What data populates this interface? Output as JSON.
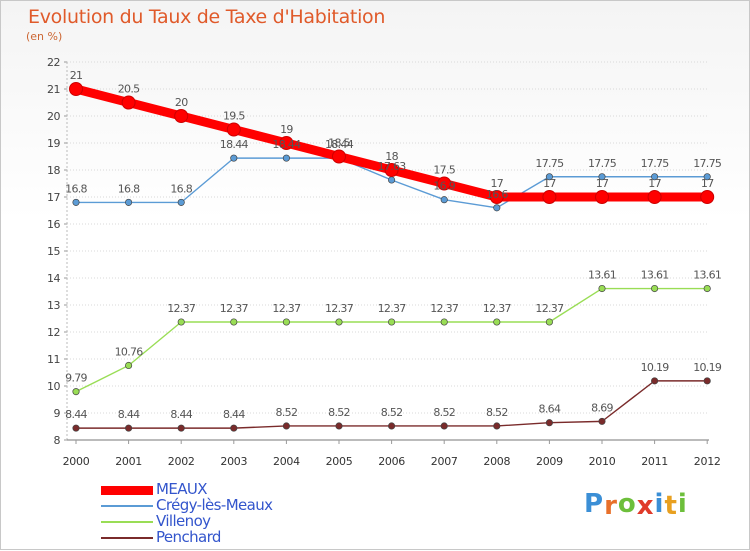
{
  "title": "Evolution du Taux de Taxe d'Habitation",
  "subtitle": "(en %)",
  "logo": {
    "text": "Proxiti",
    "letter_colors": [
      "#3b8fd6",
      "#e8702a",
      "#6dbf3b",
      "#e03a2a",
      "#3b8fd6",
      "#e8a020",
      "#6dbf3b"
    ]
  },
  "chart_data": {
    "type": "line",
    "title": "Evolution du Taux de Taxe d'Habitation",
    "ylabel": "(en %)",
    "xlabel": "",
    "ylim": [
      8,
      22
    ],
    "yticks": [
      8,
      9,
      10,
      11,
      12,
      13,
      14,
      15,
      16,
      17,
      18,
      19,
      20,
      21,
      22
    ],
    "x": [
      "2000",
      "2001",
      "2002",
      "2003",
      "2004",
      "2005",
      "2006",
      "2007",
      "2008",
      "2009",
      "2010",
      "2011",
      "2012"
    ],
    "grid": "horizontal dotted",
    "legend_position": "bottom-left",
    "series": [
      {
        "name": "MEAUX",
        "color": "#ff0000",
        "values": [
          21,
          20.5,
          20,
          19.5,
          19,
          18.5,
          18,
          17.5,
          17,
          17,
          17,
          17,
          17
        ],
        "labels": [
          "21",
          "20.5",
          "20",
          "19.5",
          "19",
          "18.5",
          "18",
          "17.5",
          "17",
          "17",
          "17",
          "17",
          "17"
        ]
      },
      {
        "name": "Crégy-lès-Meaux",
        "color": "#5b9bd5",
        "values": [
          16.8,
          16.8,
          16.8,
          18.44,
          18.44,
          18.44,
          17.63,
          16.9,
          16.6,
          17.75,
          17.75,
          17.75,
          17.75
        ],
        "labels": [
          "16.8",
          "16.8",
          "16.8",
          "18.44",
          "18.44",
          "18.44",
          "17.63",
          "16.9",
          "16.6",
          "17.75",
          "17.75",
          "17.75",
          "17.75"
        ]
      },
      {
        "name": "Villenoy",
        "color": "#99dd55",
        "values": [
          9.79,
          10.76,
          12.37,
          12.37,
          12.37,
          12.37,
          12.37,
          12.37,
          12.37,
          12.37,
          13.61,
          13.61,
          13.61
        ],
        "labels": [
          "9.79",
          "10.76",
          "12.37",
          "12.37",
          "12.37",
          "12.37",
          "12.37",
          "12.37",
          "12.37",
          "12.37",
          "13.61",
          "13.61",
          "13.61"
        ]
      },
      {
        "name": "Penchard",
        "color": "#7a2b2b",
        "values": [
          8.44,
          8.44,
          8.44,
          8.44,
          8.52,
          8.52,
          8.52,
          8.52,
          8.52,
          8.64,
          8.69,
          10.19,
          10.19
        ],
        "labels": [
          "8.44",
          "8.44",
          "8.44",
          "8.44",
          "8.52",
          "8.52",
          "8.52",
          "8.52",
          "8.52",
          "8.64",
          "8.69",
          "10.19",
          "10.19"
        ]
      }
    ]
  }
}
